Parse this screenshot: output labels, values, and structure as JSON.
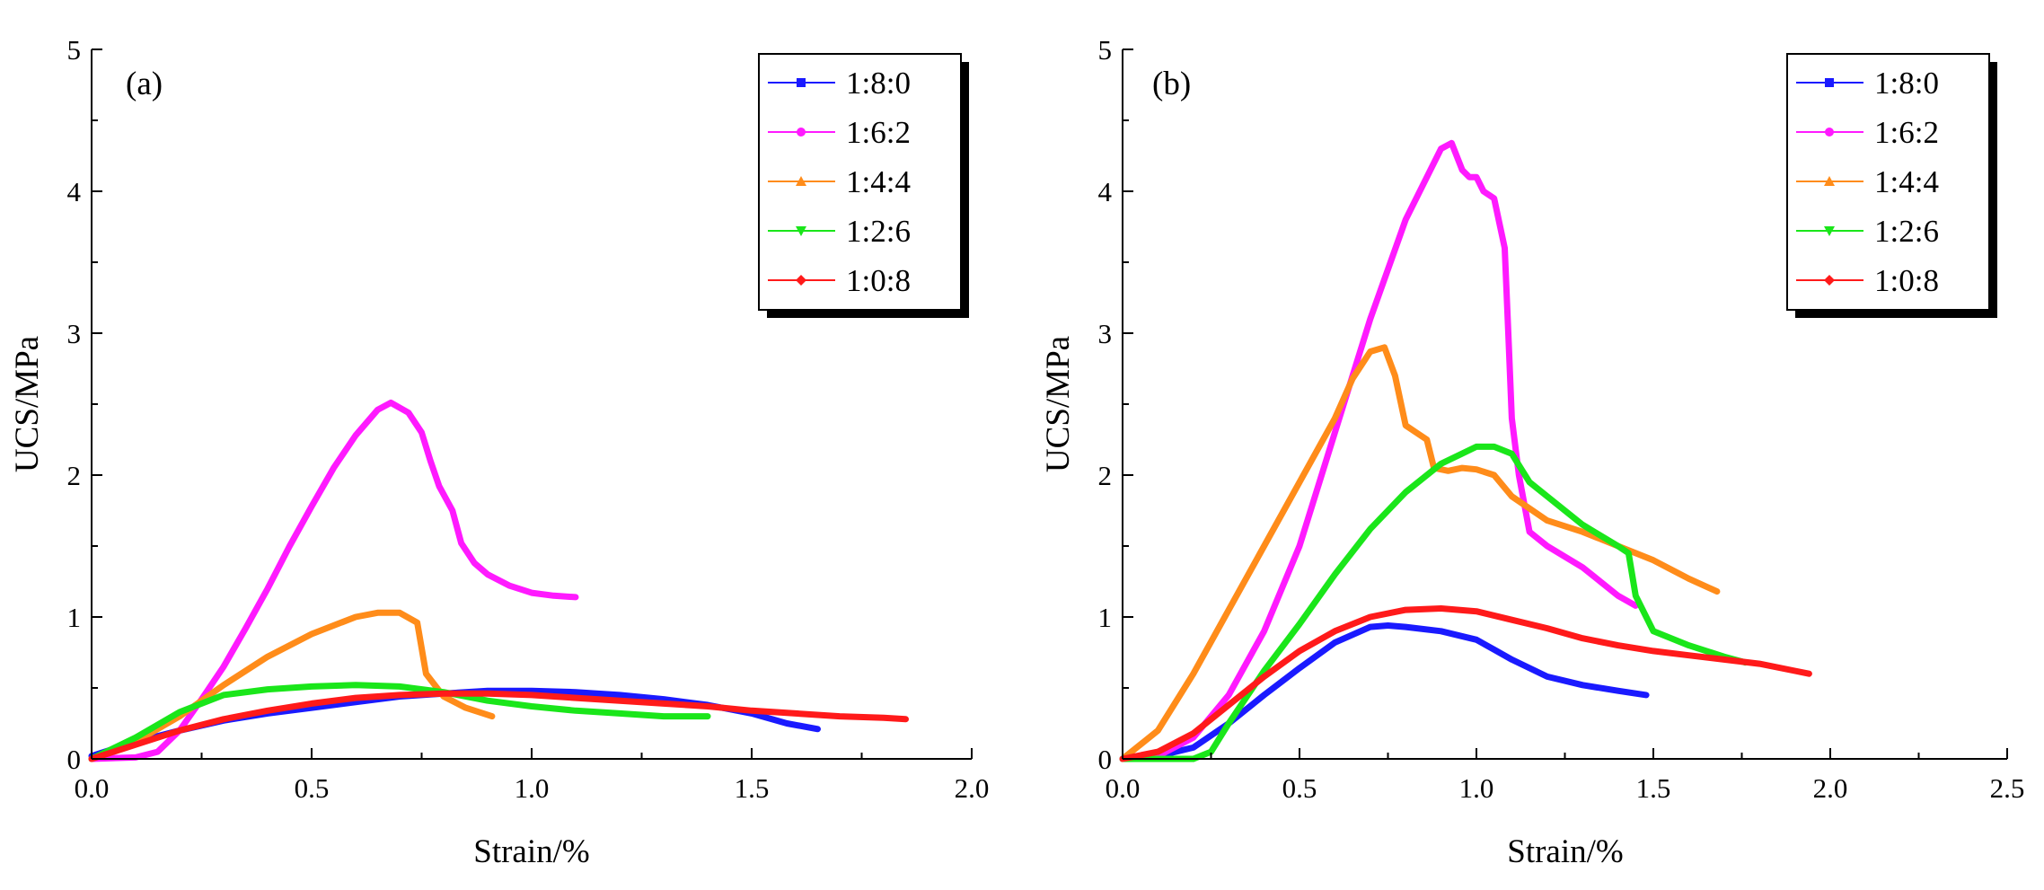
{
  "chart_data": [
    {
      "type": "line",
      "panel_label": "(a)",
      "xlabel": "Strain/%",
      "ylabel": "UCS/MPa",
      "xlim": [
        0,
        2.0
      ],
      "ylim": [
        0,
        5
      ],
      "xticks": [
        "0.0",
        "0.5",
        "1.0",
        "1.5",
        "2.0"
      ],
      "yticks": [
        "0",
        "1",
        "2",
        "3",
        "4",
        "5"
      ],
      "legend_position": "top-right",
      "series": [
        {
          "name": "1:8:0",
          "color": "#1a1aff",
          "marker": "square",
          "points": [
            [
              0,
              0.02
            ],
            [
              0.1,
              0.12
            ],
            [
              0.2,
              0.2
            ],
            [
              0.3,
              0.27
            ],
            [
              0.4,
              0.32
            ],
            [
              0.5,
              0.36
            ],
            [
              0.6,
              0.4
            ],
            [
              0.7,
              0.44
            ],
            [
              0.8,
              0.46
            ],
            [
              0.9,
              0.48
            ],
            [
              1.0,
              0.48
            ],
            [
              1.1,
              0.47
            ],
            [
              1.2,
              0.45
            ],
            [
              1.3,
              0.42
            ],
            [
              1.4,
              0.38
            ],
            [
              1.5,
              0.32
            ],
            [
              1.58,
              0.25
            ],
            [
              1.65,
              0.21
            ]
          ]
        },
        {
          "name": "1:6:2",
          "color": "#ff1aff",
          "marker": "circle",
          "points": [
            [
              0,
              0
            ],
            [
              0.1,
              0.01
            ],
            [
              0.15,
              0.05
            ],
            [
              0.2,
              0.2
            ],
            [
              0.25,
              0.42
            ],
            [
              0.3,
              0.65
            ],
            [
              0.35,
              0.92
            ],
            [
              0.4,
              1.2
            ],
            [
              0.45,
              1.5
            ],
            [
              0.5,
              1.78
            ],
            [
              0.55,
              2.05
            ],
            [
              0.6,
              2.28
            ],
            [
              0.65,
              2.46
            ],
            [
              0.68,
              2.51
            ],
            [
              0.72,
              2.44
            ],
            [
              0.75,
              2.3
            ],
            [
              0.77,
              2.1
            ],
            [
              0.79,
              1.92
            ],
            [
              0.82,
              1.75
            ],
            [
              0.84,
              1.52
            ],
            [
              0.87,
              1.38
            ],
            [
              0.9,
              1.3
            ],
            [
              0.95,
              1.22
            ],
            [
              1.0,
              1.17
            ],
            [
              1.05,
              1.15
            ],
            [
              1.1,
              1.14
            ]
          ]
        },
        {
          "name": "1:4:4",
          "color": "#ff8c1a",
          "marker": "triangle-up",
          "points": [
            [
              0,
              0
            ],
            [
              0.1,
              0.12
            ],
            [
              0.2,
              0.3
            ],
            [
              0.3,
              0.52
            ],
            [
              0.4,
              0.72
            ],
            [
              0.5,
              0.88
            ],
            [
              0.6,
              1.0
            ],
            [
              0.65,
              1.03
            ],
            [
              0.7,
              1.03
            ],
            [
              0.74,
              0.96
            ],
            [
              0.76,
              0.6
            ],
            [
              0.8,
              0.44
            ],
            [
              0.85,
              0.36
            ],
            [
              0.91,
              0.3
            ]
          ]
        },
        {
          "name": "1:2:6",
          "color": "#1ae61a",
          "marker": "triangle-down",
          "points": [
            [
              0,
              0
            ],
            [
              0.1,
              0.15
            ],
            [
              0.2,
              0.33
            ],
            [
              0.3,
              0.45
            ],
            [
              0.4,
              0.49
            ],
            [
              0.5,
              0.51
            ],
            [
              0.6,
              0.52
            ],
            [
              0.7,
              0.51
            ],
            [
              0.8,
              0.47
            ],
            [
              0.9,
              0.41
            ],
            [
              1.0,
              0.37
            ],
            [
              1.1,
              0.34
            ],
            [
              1.2,
              0.32
            ],
            [
              1.3,
              0.3
            ],
            [
              1.4,
              0.3
            ]
          ]
        },
        {
          "name": "1:0:8",
          "color": "#ff1a1a",
          "marker": "diamond",
          "points": [
            [
              0,
              0
            ],
            [
              0.1,
              0.1
            ],
            [
              0.2,
              0.2
            ],
            [
              0.3,
              0.28
            ],
            [
              0.4,
              0.34
            ],
            [
              0.5,
              0.39
            ],
            [
              0.6,
              0.43
            ],
            [
              0.7,
              0.45
            ],
            [
              0.8,
              0.46
            ],
            [
              0.9,
              0.46
            ],
            [
              1.0,
              0.45
            ],
            [
              1.1,
              0.43
            ],
            [
              1.2,
              0.41
            ],
            [
              1.3,
              0.39
            ],
            [
              1.4,
              0.37
            ],
            [
              1.5,
              0.34
            ],
            [
              1.6,
              0.32
            ],
            [
              1.7,
              0.3
            ],
            [
              1.8,
              0.29
            ],
            [
              1.85,
              0.28
            ]
          ]
        }
      ]
    },
    {
      "type": "line",
      "panel_label": "(b)",
      "xlabel": "Strain/%",
      "ylabel": "UCS/MPa",
      "xlim": [
        0,
        2.5
      ],
      "ylim": [
        0,
        5
      ],
      "xticks": [
        "0.0",
        "0.5",
        "1.0",
        "1.5",
        "2.0",
        "2.5"
      ],
      "yticks": [
        "0",
        "1",
        "2",
        "3",
        "4",
        "5"
      ],
      "legend_position": "top-right",
      "series": [
        {
          "name": "1:8:0",
          "color": "#1a1aff",
          "marker": "square",
          "points": [
            [
              0,
              0
            ],
            [
              0.1,
              0.02
            ],
            [
              0.2,
              0.08
            ],
            [
              0.3,
              0.25
            ],
            [
              0.4,
              0.45
            ],
            [
              0.5,
              0.64
            ],
            [
              0.6,
              0.82
            ],
            [
              0.7,
              0.93
            ],
            [
              0.75,
              0.94
            ],
            [
              0.8,
              0.93
            ],
            [
              0.9,
              0.9
            ],
            [
              1.0,
              0.84
            ],
            [
              1.05,
              0.77
            ],
            [
              1.1,
              0.7
            ],
            [
              1.2,
              0.58
            ],
            [
              1.3,
              0.52
            ],
            [
              1.4,
              0.48
            ],
            [
              1.48,
              0.45
            ]
          ]
        },
        {
          "name": "1:6:2",
          "color": "#ff1aff",
          "marker": "circle",
          "points": [
            [
              0,
              0
            ],
            [
              0.1,
              0.02
            ],
            [
              0.2,
              0.15
            ],
            [
              0.3,
              0.45
            ],
            [
              0.4,
              0.9
            ],
            [
              0.5,
              1.5
            ],
            [
              0.6,
              2.3
            ],
            [
              0.7,
              3.1
            ],
            [
              0.8,
              3.8
            ],
            [
              0.85,
              4.05
            ],
            [
              0.9,
              4.3
            ],
            [
              0.93,
              4.34
            ],
            [
              0.96,
              4.15
            ],
            [
              0.98,
              4.1
            ],
            [
              1.0,
              4.1
            ],
            [
              1.02,
              4.0
            ],
            [
              1.05,
              3.95
            ],
            [
              1.08,
              3.6
            ],
            [
              1.09,
              3.0
            ],
            [
              1.1,
              2.4
            ],
            [
              1.12,
              2.0
            ],
            [
              1.15,
              1.6
            ],
            [
              1.2,
              1.5
            ],
            [
              1.3,
              1.35
            ],
            [
              1.4,
              1.15
            ],
            [
              1.45,
              1.08
            ]
          ]
        },
        {
          "name": "1:4:4",
          "color": "#ff8c1a",
          "marker": "triangle-up",
          "points": [
            [
              0,
              0
            ],
            [
              0.1,
              0.2
            ],
            [
              0.2,
              0.6
            ],
            [
              0.3,
              1.05
            ],
            [
              0.4,
              1.5
            ],
            [
              0.5,
              1.95
            ],
            [
              0.6,
              2.4
            ],
            [
              0.65,
              2.68
            ],
            [
              0.7,
              2.87
            ],
            [
              0.74,
              2.9
            ],
            [
              0.77,
              2.7
            ],
            [
              0.8,
              2.35
            ],
            [
              0.83,
              2.3
            ],
            [
              0.86,
              2.25
            ],
            [
              0.88,
              2.05
            ],
            [
              0.92,
              2.03
            ],
            [
              0.96,
              2.05
            ],
            [
              1.0,
              2.04
            ],
            [
              1.05,
              2.0
            ],
            [
              1.1,
              1.85
            ],
            [
              1.2,
              1.68
            ],
            [
              1.3,
              1.6
            ],
            [
              1.4,
              1.5
            ],
            [
              1.5,
              1.4
            ],
            [
              1.6,
              1.27
            ],
            [
              1.68,
              1.18
            ]
          ]
        },
        {
          "name": "1:2:6",
          "color": "#1ae61a",
          "marker": "triangle-down",
          "points": [
            [
              0,
              0
            ],
            [
              0.2,
              0
            ],
            [
              0.25,
              0.05
            ],
            [
              0.3,
              0.25
            ],
            [
              0.4,
              0.62
            ],
            [
              0.5,
              0.95
            ],
            [
              0.6,
              1.3
            ],
            [
              0.7,
              1.62
            ],
            [
              0.8,
              1.88
            ],
            [
              0.9,
              2.08
            ],
            [
              1.0,
              2.2
            ],
            [
              1.05,
              2.2
            ],
            [
              1.1,
              2.15
            ],
            [
              1.15,
              1.95
            ],
            [
              1.2,
              1.85
            ],
            [
              1.3,
              1.65
            ],
            [
              1.4,
              1.5
            ],
            [
              1.43,
              1.45
            ],
            [
              1.45,
              1.15
            ],
            [
              1.5,
              0.9
            ],
            [
              1.6,
              0.8
            ],
            [
              1.7,
              0.72
            ],
            [
              1.76,
              0.68
            ]
          ]
        },
        {
          "name": "1:0:8",
          "color": "#ff1a1a",
          "marker": "diamond",
          "points": [
            [
              0,
              0
            ],
            [
              0.1,
              0.05
            ],
            [
              0.2,
              0.18
            ],
            [
              0.3,
              0.38
            ],
            [
              0.4,
              0.58
            ],
            [
              0.5,
              0.76
            ],
            [
              0.6,
              0.9
            ],
            [
              0.7,
              1.0
            ],
            [
              0.8,
              1.05
            ],
            [
              0.9,
              1.06
            ],
            [
              1.0,
              1.04
            ],
            [
              1.1,
              0.98
            ],
            [
              1.2,
              0.92
            ],
            [
              1.3,
              0.85
            ],
            [
              1.4,
              0.8
            ],
            [
              1.5,
              0.76
            ],
            [
              1.6,
              0.73
            ],
            [
              1.7,
              0.7
            ],
            [
              1.8,
              0.67
            ],
            [
              1.9,
              0.62
            ],
            [
              1.94,
              0.6
            ]
          ]
        }
      ]
    }
  ]
}
